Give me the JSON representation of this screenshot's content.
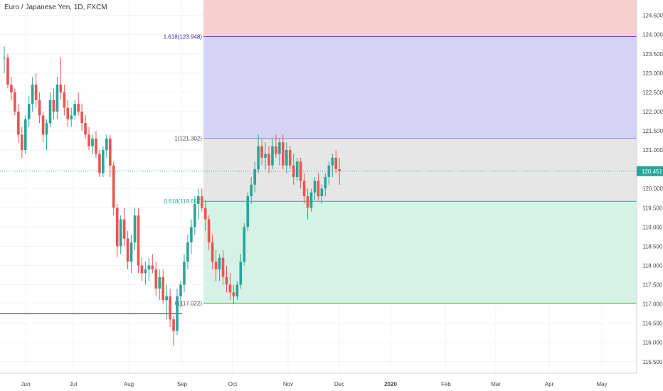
{
  "header": {
    "title": "Euro / Japanese Yen, 1D, FXCM"
  },
  "colors": {
    "up": "#26a69a",
    "down": "#ef5350",
    "grid": "#f0f3fa",
    "fib_top_zone": "#f6d0cc",
    "fib_ext_zone": "#d4d2f5",
    "fib_mid_zone": "#e6e6e6",
    "fib_green_zone": "#d6f2e6",
    "fib_1618_line": "#5b48d6",
    "fib_1_line": "#8b86d8",
    "fib_0618_line": "#26a69a",
    "fib_0_line": "#4caf50",
    "last_price_line": "#26a69a",
    "horizontal_line": "#1e222d"
  },
  "chart_data": {
    "type": "candlestick",
    "title": "Euro / Japanese Yen, 1D, FXCM",
    "x_axis": {
      "labels": [
        "Jun",
        "Jul",
        "Aug",
        "Sep",
        "Oct",
        "Nov",
        "Dec",
        "2020",
        "Feb",
        "Mar",
        "Apr",
        "May"
      ],
      "bold_labels": [
        "2020"
      ]
    },
    "y_axis": {
      "side": "right",
      "range": [
        115.2,
        124.9
      ],
      "ticks": [
        124.5,
        124.0,
        123.5,
        123.0,
        122.5,
        122.0,
        121.5,
        121.0,
        120.5,
        120.0,
        119.5,
        119.0,
        118.5,
        118.0,
        117.5,
        117.0,
        116.5,
        116.0,
        115.5
      ],
      "tick_labels": [
        "124.500",
        "124.000",
        "123.500",
        "123.000",
        "122.500",
        "122.000",
        "121.500",
        "121.000",
        "120.500",
        "120.000",
        "119.500",
        "119.000",
        "118.500",
        "118.000",
        "117.500",
        "117.000",
        "116.500",
        "116.000",
        "115.500"
      ]
    },
    "last_price": {
      "value": 120.451,
      "label": "120.451"
    },
    "fib_levels": [
      {
        "ratio": "1.618",
        "price": 123.948,
        "label": "1.618(123.948)"
      },
      {
        "ratio": "1",
        "price": 121.302,
        "label": "1(121.302)"
      },
      {
        "ratio": "0.618",
        "price": 119.667,
        "label": "0.618(119.667)"
      },
      {
        "ratio": "0",
        "price": 117.022,
        "label": "0(117.022)"
      }
    ],
    "horizontal_line_price": 116.75,
    "candles": [
      [
        123.4,
        123.7,
        123.0,
        123.4
      ],
      [
        123.4,
        123.5,
        122.6,
        122.7
      ],
      [
        122.7,
        122.9,
        122.3,
        122.5
      ],
      [
        122.5,
        122.6,
        121.9,
        122.0
      ],
      [
        122.0,
        122.2,
        121.2,
        121.4
      ],
      [
        121.4,
        121.6,
        120.8,
        121.0
      ],
      [
        121.0,
        121.9,
        120.9,
        121.8
      ],
      [
        121.8,
        122.4,
        121.6,
        122.2
      ],
      [
        122.2,
        122.9,
        122.0,
        122.7
      ],
      [
        122.7,
        123.0,
        122.1,
        122.3
      ],
      [
        122.3,
        122.5,
        121.7,
        121.9
      ],
      [
        121.9,
        122.0,
        121.2,
        121.4
      ],
      [
        121.4,
        121.8,
        121.0,
        121.7
      ],
      [
        121.7,
        122.5,
        121.6,
        122.3
      ],
      [
        122.3,
        122.6,
        121.8,
        122.0
      ],
      [
        122.0,
        122.9,
        121.8,
        122.7
      ],
      [
        122.7,
        123.4,
        122.3,
        122.5
      ],
      [
        122.5,
        122.7,
        121.9,
        122.1
      ],
      [
        122.1,
        122.3,
        121.6,
        121.8
      ],
      [
        121.8,
        122.1,
        121.6,
        121.9
      ],
      [
        121.9,
        122.3,
        121.8,
        122.2
      ],
      [
        122.2,
        122.5,
        121.9,
        122.0
      ],
      [
        122.0,
        122.2,
        121.5,
        121.7
      ],
      [
        121.7,
        121.9,
        121.3,
        121.4
      ],
      [
        121.4,
        121.6,
        121.0,
        121.1
      ],
      [
        121.1,
        121.4,
        120.9,
        121.3
      ],
      [
        121.3,
        121.5,
        120.8,
        120.9
      ],
      [
        120.9,
        121.0,
        120.3,
        120.4
      ],
      [
        120.4,
        121.1,
        120.3,
        121.0
      ],
      [
        121.0,
        121.4,
        120.8,
        121.3
      ],
      [
        121.3,
        121.4,
        120.3,
        120.6
      ],
      [
        120.6,
        120.7,
        119.3,
        119.5
      ],
      [
        119.5,
        119.6,
        118.2,
        118.5
      ],
      [
        118.5,
        119.3,
        118.3,
        119.2
      ],
      [
        119.2,
        119.5,
        118.5,
        118.7
      ],
      [
        118.7,
        118.9,
        117.9,
        118.1
      ],
      [
        118.1,
        118.8,
        117.8,
        118.6
      ],
      [
        118.6,
        119.5,
        118.4,
        119.3
      ],
      [
        119.3,
        119.5,
        117.8,
        118.0
      ],
      [
        118.0,
        118.2,
        117.6,
        117.8
      ],
      [
        117.8,
        118.1,
        117.5,
        117.9
      ],
      [
        117.9,
        118.2,
        117.6,
        118.0
      ],
      [
        118.0,
        118.3,
        117.8,
        117.9
      ],
      [
        117.9,
        118.1,
        117.2,
        117.4
      ],
      [
        117.4,
        117.9,
        117.1,
        117.7
      ],
      [
        117.7,
        117.9,
        117.0,
        117.1
      ],
      [
        117.1,
        117.5,
        116.6,
        117.2
      ],
      [
        117.2,
        117.4,
        116.4,
        116.6
      ],
      [
        116.6,
        116.7,
        115.9,
        116.3
      ],
      [
        116.3,
        117.4,
        116.2,
        117.2
      ],
      [
        117.2,
        117.6,
        116.9,
        117.5
      ],
      [
        117.5,
        118.3,
        117.3,
        118.1
      ],
      [
        118.1,
        118.8,
        117.9,
        118.6
      ],
      [
        118.6,
        119.2,
        118.3,
        119.0
      ],
      [
        119.0,
        119.8,
        118.8,
        119.6
      ],
      [
        119.6,
        120.0,
        119.2,
        119.8
      ],
      [
        119.8,
        120.0,
        119.4,
        119.5
      ],
      [
        119.5,
        119.7,
        118.9,
        119.2
      ],
      [
        119.2,
        119.3,
        118.4,
        118.6
      ],
      [
        118.6,
        118.8,
        117.9,
        118.1
      ],
      [
        118.1,
        118.4,
        117.6,
        117.9
      ],
      [
        117.9,
        118.3,
        117.6,
        118.2
      ],
      [
        118.2,
        118.4,
        117.5,
        117.7
      ],
      [
        117.7,
        118.0,
        117.3,
        117.5
      ],
      [
        117.5,
        117.8,
        117.1,
        117.3
      ],
      [
        117.3,
        117.5,
        117.0,
        117.2
      ],
      [
        117.2,
        117.6,
        117.1,
        117.5
      ],
      [
        117.5,
        118.3,
        117.4,
        118.1
      ],
      [
        118.1,
        119.1,
        118.0,
        119.0
      ],
      [
        119.0,
        119.9,
        118.9,
        119.8
      ],
      [
        119.8,
        120.3,
        119.6,
        120.1
      ],
      [
        120.1,
        120.7,
        119.9,
        120.5
      ],
      [
        120.5,
        121.4,
        120.4,
        121.1
      ],
      [
        121.1,
        121.3,
        120.6,
        120.8
      ],
      [
        120.8,
        121.2,
        120.5,
        120.9
      ],
      [
        120.9,
        121.1,
        120.4,
        120.6
      ],
      [
        120.6,
        121.3,
        120.5,
        121.1
      ],
      [
        121.1,
        121.4,
        120.8,
        120.9
      ],
      [
        120.9,
        121.3,
        120.6,
        121.2
      ],
      [
        121.2,
        121.4,
        120.5,
        120.6
      ],
      [
        120.6,
        121.2,
        120.4,
        121.0
      ],
      [
        121.0,
        121.1,
        120.5,
        120.6
      ],
      [
        120.6,
        120.9,
        120.1,
        120.3
      ],
      [
        120.3,
        120.8,
        120.2,
        120.7
      ],
      [
        120.7,
        120.8,
        120.0,
        120.2
      ],
      [
        120.2,
        120.4,
        119.6,
        119.8
      ],
      [
        119.8,
        120.0,
        119.2,
        119.5
      ],
      [
        119.5,
        120.0,
        119.4,
        119.9
      ],
      [
        119.9,
        120.3,
        119.7,
        120.2
      ],
      [
        120.2,
        120.4,
        119.7,
        119.8
      ],
      [
        119.8,
        120.1,
        119.6,
        120.0
      ],
      [
        120.0,
        120.4,
        119.8,
        120.3
      ],
      [
        120.3,
        120.7,
        120.1,
        120.6
      ],
      [
        120.6,
        120.9,
        120.3,
        120.8
      ],
      [
        120.8,
        121.0,
        120.4,
        120.5
      ],
      [
        120.5,
        120.8,
        120.1,
        120.451
      ]
    ]
  }
}
